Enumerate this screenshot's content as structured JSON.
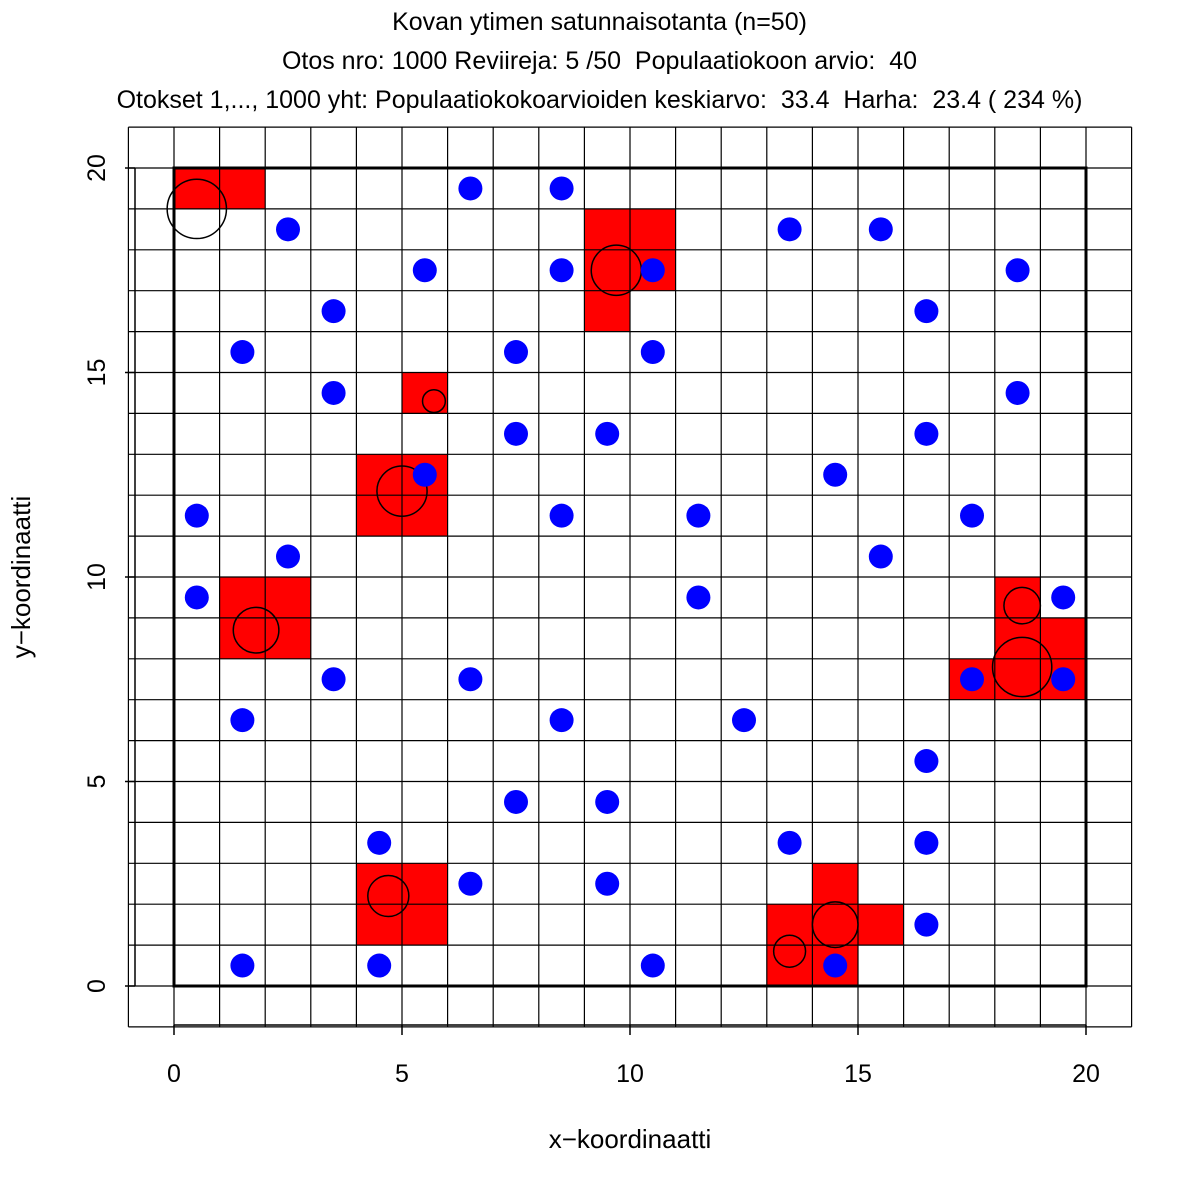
{
  "chart_data": {
    "type": "scatter",
    "title": "Kovan ytimen satunnaisotanta (n=50)",
    "subtitle_line1": "Otos nro: 1000 Reviireja: 5 /50  Populaatiokoon arvio:  40",
    "subtitle_line2": "Otokset 1,..., 1000 yht: Populaatiokokoarvioiden keskiarvo:  33.4  Harha:  23.4 ( 234 %)",
    "xlabel": "x−koordinaatti",
    "ylabel": "y−koordinaatti",
    "xlim": [
      0,
      20
    ],
    "ylim": [
      0,
      20
    ],
    "grid_cell_size": 1,
    "x_ticks": [
      0,
      5,
      10,
      15,
      20
    ],
    "y_ticks": [
      0,
      5,
      10,
      15,
      20
    ],
    "x_tick_labels": [
      "0",
      "5",
      "10",
      "15",
      "20"
    ],
    "y_tick_labels": [
      "0",
      "5",
      "10",
      "15",
      "20"
    ],
    "sampled_cells": [
      [
        0,
        19
      ],
      [
        1,
        19
      ],
      [
        9,
        18
      ],
      [
        10,
        18
      ],
      [
        9,
        17
      ],
      [
        10,
        17
      ],
      [
        9,
        16
      ],
      [
        5,
        14
      ],
      [
        4,
        12
      ],
      [
        5,
        12
      ],
      [
        4,
        11
      ],
      [
        5,
        11
      ],
      [
        1,
        9
      ],
      [
        2,
        9
      ],
      [
        1,
        8
      ],
      [
        2,
        8
      ],
      [
        18,
        9
      ],
      [
        18,
        8
      ],
      [
        19,
        8
      ],
      [
        17,
        7
      ],
      [
        18,
        7
      ],
      [
        19,
        7
      ],
      [
        4,
        2
      ],
      [
        5,
        2
      ],
      [
        4,
        1
      ],
      [
        5,
        1
      ],
      [
        14,
        2
      ],
      [
        13,
        1
      ],
      [
        14,
        1
      ],
      [
        15,
        1
      ],
      [
        13,
        0
      ],
      [
        14,
        0
      ]
    ],
    "territories": [
      {
        "x": 0.5,
        "y": 19.0,
        "r": 0.65
      },
      {
        "x": 9.7,
        "y": 17.5,
        "r": 0.55
      },
      {
        "x": 5.7,
        "y": 14.3,
        "r": 0.25
      },
      {
        "x": 5.0,
        "y": 12.1,
        "r": 0.55
      },
      {
        "x": 1.8,
        "y": 8.7,
        "r": 0.5
      },
      {
        "x": 18.6,
        "y": 9.3,
        "r": 0.4
      },
      {
        "x": 18.6,
        "y": 7.8,
        "r": 0.65
      },
      {
        "x": 4.7,
        "y": 2.2,
        "r": 0.45
      },
      {
        "x": 14.5,
        "y": 1.5,
        "r": 0.5
      },
      {
        "x": 13.5,
        "y": 0.85,
        "r": 0.35
      }
    ],
    "points": [
      [
        6.5,
        19.5
      ],
      [
        8.5,
        19.5
      ],
      [
        2.5,
        18.5
      ],
      [
        13.5,
        18.5
      ],
      [
        15.5,
        18.5
      ],
      [
        5.5,
        17.5
      ],
      [
        8.5,
        17.5
      ],
      [
        10.5,
        17.5
      ],
      [
        18.5,
        17.5
      ],
      [
        3.5,
        16.5
      ],
      [
        16.5,
        16.5
      ],
      [
        1.5,
        15.5
      ],
      [
        7.5,
        15.5
      ],
      [
        10.5,
        15.5
      ],
      [
        3.5,
        14.5
      ],
      [
        18.5,
        14.5
      ],
      [
        7.5,
        13.5
      ],
      [
        9.5,
        13.5
      ],
      [
        16.5,
        13.5
      ],
      [
        5.5,
        12.5
      ],
      [
        14.5,
        12.5
      ],
      [
        0.5,
        11.5
      ],
      [
        8.5,
        11.5
      ],
      [
        11.5,
        11.5
      ],
      [
        17.5,
        11.5
      ],
      [
        2.5,
        10.5
      ],
      [
        15.5,
        10.5
      ],
      [
        0.5,
        9.5
      ],
      [
        11.5,
        9.5
      ],
      [
        19.5,
        9.5
      ],
      [
        3.5,
        7.5
      ],
      [
        6.5,
        7.5
      ],
      [
        17.5,
        7.5
      ],
      [
        19.5,
        7.5
      ],
      [
        1.5,
        6.5
      ],
      [
        8.5,
        6.5
      ],
      [
        12.5,
        6.5
      ],
      [
        16.5,
        5.5
      ],
      [
        7.5,
        4.5
      ],
      [
        9.5,
        4.5
      ],
      [
        4.5,
        3.5
      ],
      [
        13.5,
        3.5
      ],
      [
        16.5,
        3.5
      ],
      [
        6.5,
        2.5
      ],
      [
        9.5,
        2.5
      ],
      [
        16.5,
        1.5
      ],
      [
        1.5,
        0.5
      ],
      [
        4.5,
        0.5
      ],
      [
        10.5,
        0.5
      ],
      [
        14.5,
        0.5
      ]
    ],
    "colors": {
      "sampled_cell": "#ff0000",
      "point": "#0000ff",
      "grid": "#000000",
      "territory_outline": "#000000"
    }
  }
}
